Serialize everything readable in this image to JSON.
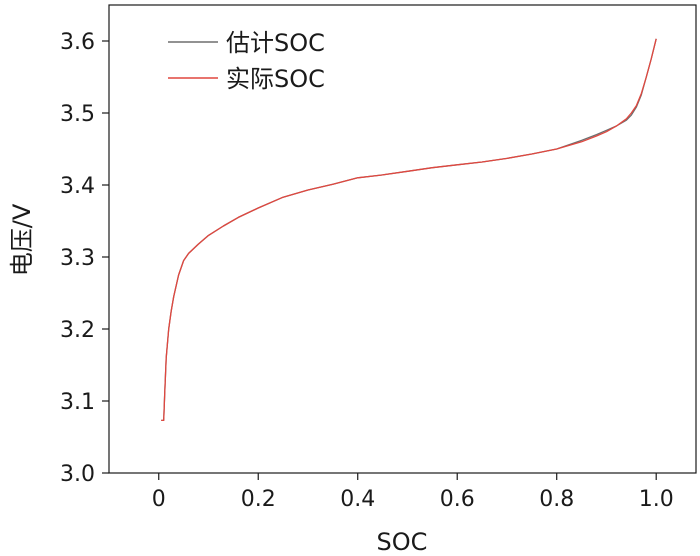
{
  "chart_data": {
    "type": "line",
    "title": "",
    "xlabel": "SOC",
    "ylabel": "电压/V",
    "xlim": [
      -0.1,
      1.08
    ],
    "ylim": [
      3.0,
      3.65
    ],
    "xticks": [
      "0",
      "0.2",
      "0.4",
      "0.6",
      "0.8",
      "1.0"
    ],
    "xtick_values": [
      0,
      0.2,
      0.4,
      0.6,
      0.8,
      1.0
    ],
    "yticks": [
      "3.0",
      "3.1",
      "3.2",
      "3.3",
      "3.4",
      "3.5",
      "3.6"
    ],
    "ytick_values": [
      3.0,
      3.1,
      3.2,
      3.3,
      3.4,
      3.5,
      3.6
    ],
    "grid": false,
    "legend_position": "top-left",
    "series": [
      {
        "name": "估计SOC",
        "color": "#6e6e6e",
        "x": [
          0.005,
          0.01,
          0.012,
          0.015,
          0.02,
          0.025,
          0.03,
          0.04,
          0.05,
          0.06,
          0.08,
          0.1,
          0.13,
          0.16,
          0.2,
          0.25,
          0.3,
          0.35,
          0.4,
          0.45,
          0.5,
          0.55,
          0.6,
          0.65,
          0.7,
          0.75,
          0.8,
          0.85,
          0.88,
          0.9,
          0.92,
          0.94,
          0.95,
          0.96,
          0.97,
          0.98,
          0.99,
          1.0
        ],
        "y": [
          3.073,
          3.073,
          3.11,
          3.16,
          3.2,
          3.225,
          3.245,
          3.275,
          3.295,
          3.305,
          3.318,
          3.33,
          3.343,
          3.355,
          3.368,
          3.383,
          3.393,
          3.401,
          3.41,
          3.414,
          3.419,
          3.424,
          3.428,
          3.432,
          3.437,
          3.443,
          3.45,
          3.462,
          3.47,
          3.476,
          3.482,
          3.49,
          3.497,
          3.508,
          3.525,
          3.55,
          3.575,
          3.603
        ]
      },
      {
        "name": "实际SOC",
        "color": "#e0473f",
        "x": [
          0.005,
          0.01,
          0.012,
          0.015,
          0.02,
          0.025,
          0.03,
          0.04,
          0.05,
          0.06,
          0.08,
          0.1,
          0.13,
          0.16,
          0.2,
          0.25,
          0.3,
          0.35,
          0.4,
          0.45,
          0.5,
          0.55,
          0.6,
          0.65,
          0.7,
          0.75,
          0.8,
          0.85,
          0.88,
          0.9,
          0.92,
          0.94,
          0.95,
          0.96,
          0.97,
          0.98,
          0.99,
          1.0
        ],
        "y": [
          3.073,
          3.073,
          3.11,
          3.16,
          3.2,
          3.225,
          3.245,
          3.275,
          3.295,
          3.305,
          3.318,
          3.33,
          3.343,
          3.355,
          3.368,
          3.383,
          3.393,
          3.401,
          3.41,
          3.414,
          3.419,
          3.424,
          3.428,
          3.432,
          3.437,
          3.443,
          3.45,
          3.46,
          3.468,
          3.474,
          3.482,
          3.492,
          3.5,
          3.51,
          3.527,
          3.55,
          3.575,
          3.603
        ]
      }
    ]
  }
}
